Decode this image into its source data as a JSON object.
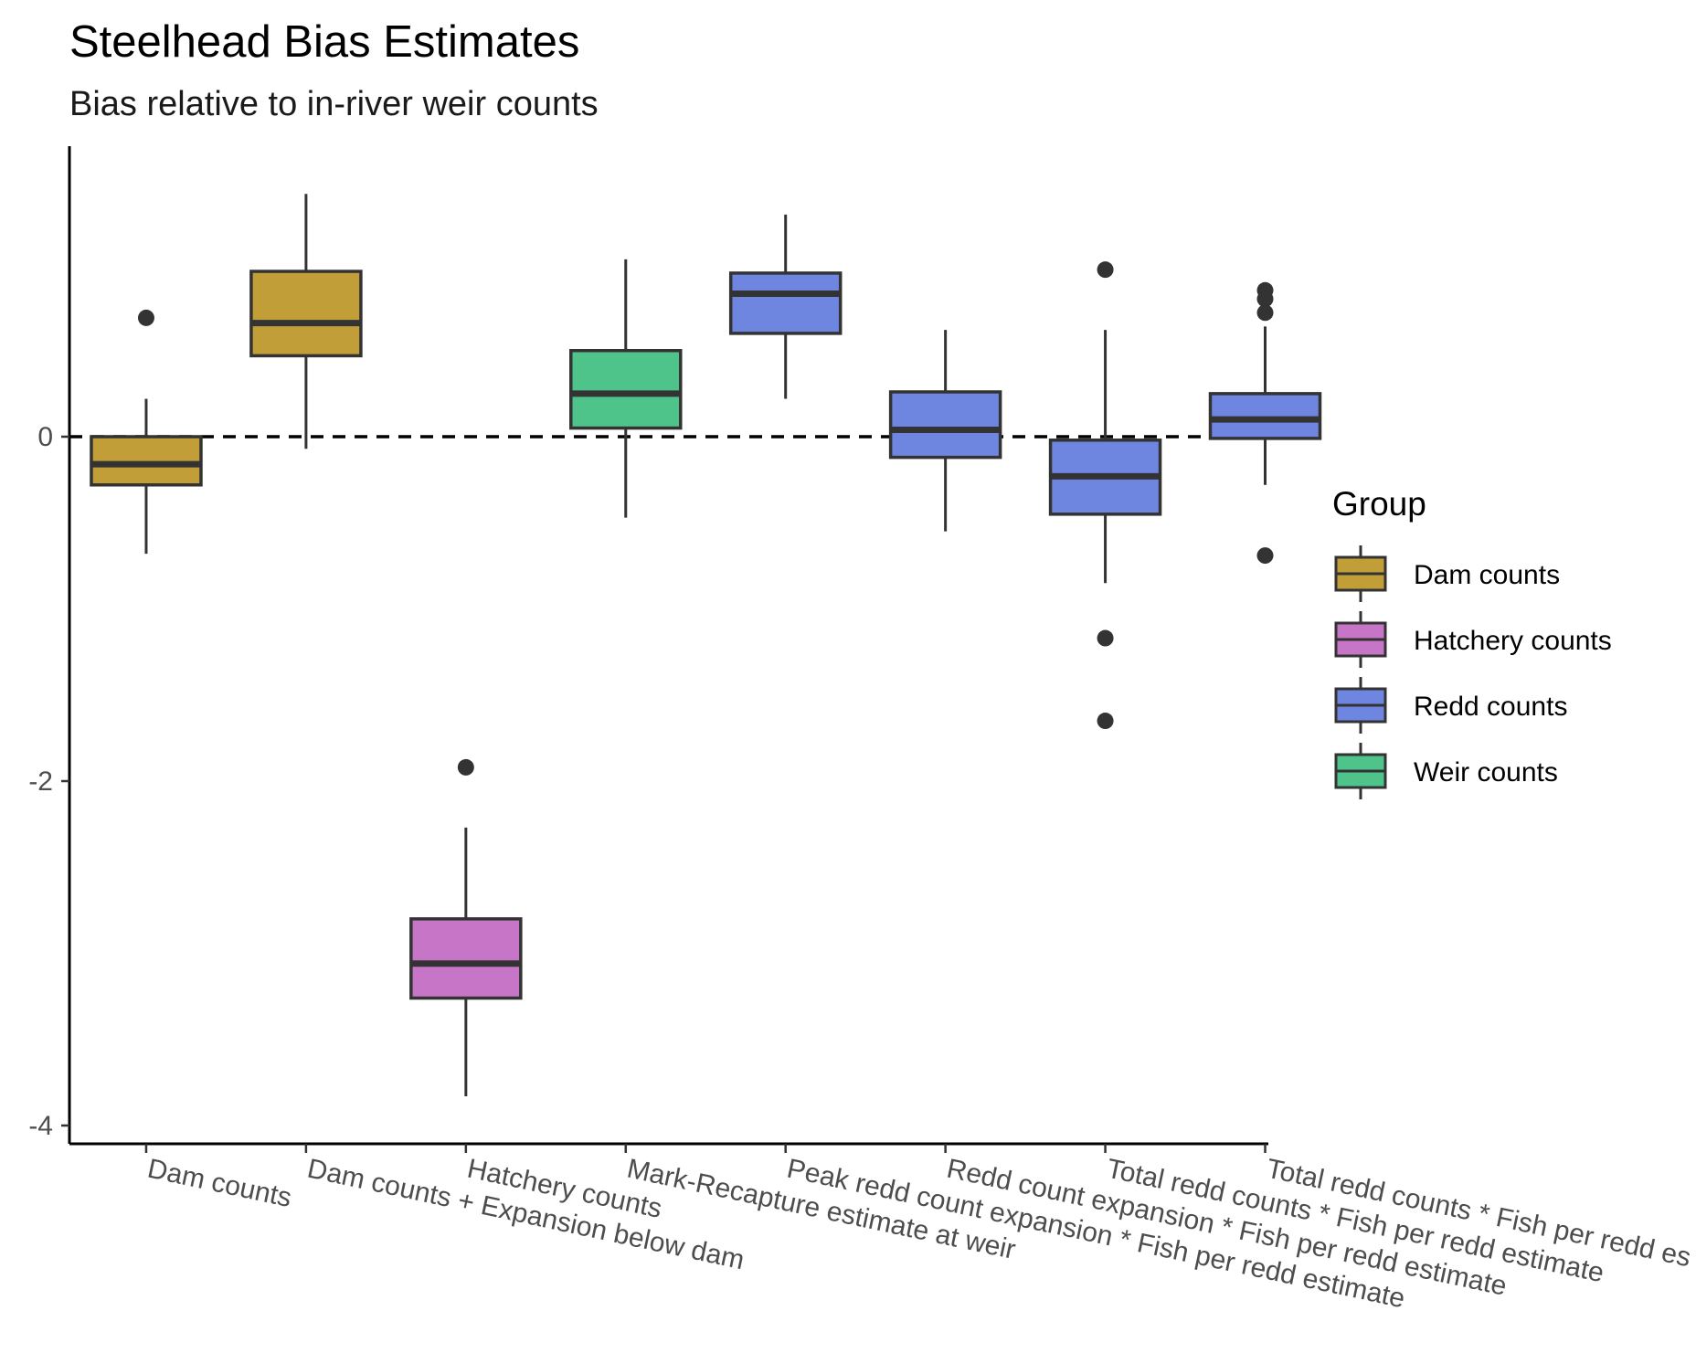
{
  "chart_data": {
    "type": "boxplot",
    "title": "Steelhead Bias Estimates",
    "subtitle": "Bias relative to in-river weir counts",
    "xlabel": "",
    "ylabel": "",
    "ylim": [
      -4.1,
      1.65
    ],
    "yticks": [
      0,
      -2,
      -4
    ],
    "reference_line": {
      "y": 0,
      "style": "dashed"
    },
    "grid": false,
    "legend": {
      "title": "Group",
      "position": "right",
      "items": [
        {
          "name": "Dam counts",
          "color": "#C29E39"
        },
        {
          "name": "Hatchery counts",
          "color": "#C775C7"
        },
        {
          "name": "Redd counts",
          "color": "#6F86E0"
        },
        {
          "name": "Weir counts",
          "color": "#4EC48B"
        }
      ]
    },
    "categories": [
      {
        "label": "Dam counts",
        "group": "Dam counts",
        "whisker_low": -0.68,
        "q1": -0.28,
        "median": -0.16,
        "q3": 0.0,
        "whisker_high": 0.22,
        "outliers": [
          0.69
        ]
      },
      {
        "label": "Dam counts + Expansion below dam",
        "group": "Dam counts",
        "whisker_low": -0.07,
        "q1": 0.47,
        "median": 0.66,
        "q3": 0.96,
        "whisker_high": 1.41,
        "outliers": []
      },
      {
        "label": "Hatchery counts",
        "group": "Hatchery counts",
        "whisker_low": -3.83,
        "q1": -3.26,
        "median": -3.06,
        "q3": -2.8,
        "whisker_high": -2.27,
        "outliers": [
          -1.92
        ]
      },
      {
        "label": "Mark-Recapture estimate at weir",
        "group": "Weir counts",
        "whisker_low": -0.47,
        "q1": 0.05,
        "median": 0.25,
        "q3": 0.5,
        "whisker_high": 1.03,
        "outliers": []
      },
      {
        "label": "Peak redd count expansion * Fish per redd estimate",
        "group": "Redd counts",
        "whisker_low": 0.22,
        "q1": 0.6,
        "median": 0.83,
        "q3": 0.95,
        "whisker_high": 1.29,
        "outliers": []
      },
      {
        "label": "Redd count expansion * Fish per redd estimate",
        "group": "Redd counts",
        "whisker_low": -0.55,
        "q1": -0.12,
        "median": 0.04,
        "q3": 0.26,
        "whisker_high": 0.62,
        "outliers": []
      },
      {
        "label": "Total redd counts * Fish per redd estimate",
        "group": "Redd counts",
        "whisker_low": -0.85,
        "q1": -0.45,
        "median": -0.23,
        "q3": -0.02,
        "whisker_high": 0.62,
        "outliers": [
          0.97,
          -1.17,
          -1.65
        ]
      },
      {
        "label": "Total redd counts * Fish per redd es",
        "group": "Redd counts",
        "whisker_low": -0.28,
        "q1": -0.01,
        "median": 0.1,
        "q3": 0.25,
        "whisker_high": 0.64,
        "outliers": [
          0.85,
          0.8,
          0.72,
          -0.69
        ]
      }
    ]
  }
}
